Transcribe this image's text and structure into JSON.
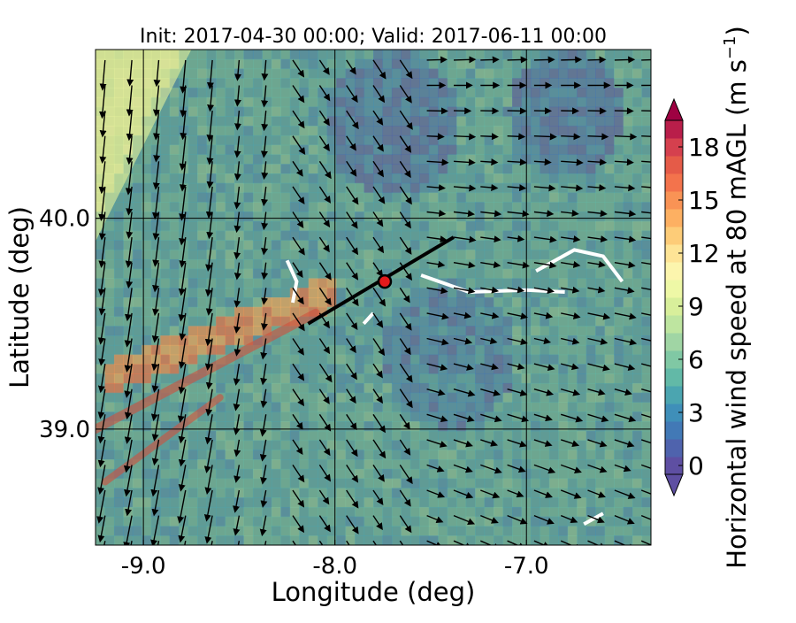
{
  "chart_data": {
    "type": "heatmap",
    "title": "Init: 2017-04-30 00:00; Valid: 2017-06-11 00:00",
    "xlabel": "Longitude (deg)",
    "ylabel": "Latitude (deg)",
    "xlim": [
      -9.25,
      -6.35
    ],
    "ylim": [
      38.45,
      40.8
    ],
    "x_ticks": [
      {
        "value": -9.0,
        "label": "-9.0"
      },
      {
        "value": -8.0,
        "label": "-8.0"
      },
      {
        "value": -7.0,
        "label": "-7.0"
      }
    ],
    "y_ticks": [
      {
        "value": 40.0,
        "label": "40.0"
      },
      {
        "value": 39.0,
        "label": "39.0"
      }
    ],
    "grid": true,
    "colorbar": {
      "label_main": "Horizontal wind speed at 80 mAGL (m s",
      "label_sup": "−1",
      "label_close": ")",
      "min": 0,
      "max": 20,
      "step": 1,
      "extend": "both",
      "ticks": [
        {
          "value": 0,
          "label": "0"
        },
        {
          "value": 3,
          "label": "3"
        },
        {
          "value": 6,
          "label": "6"
        },
        {
          "value": 9,
          "label": "9"
        },
        {
          "value": 12,
          "label": "12"
        },
        {
          "value": 15,
          "label": "15"
        },
        {
          "value": 18,
          "label": "18"
        }
      ],
      "colors": [
        "#5e4fa2",
        "#4f63ad",
        "#4279b6",
        "#3f8fb9",
        "#4ba5b0",
        "#62b9a7",
        "#80c8a4",
        "#a0d5a4",
        "#bee5a0",
        "#d8ef9b",
        "#eef8a6",
        "#fcf5ad",
        "#fee496",
        "#fdcc78",
        "#fdb062",
        "#f99355",
        "#f3734c",
        "#e55b48",
        "#d5404e",
        "#b91e4a",
        "#9e0142"
      ],
      "under_color": "#5e4fa2",
      "over_color": "#9e0142"
    },
    "transect": {
      "start": {
        "lon": -8.14,
        "lat": 39.5
      },
      "end": {
        "lon": -7.38,
        "lat": 39.91
      },
      "marker": {
        "lon": -7.74,
        "lat": 39.7,
        "color": "#e31a1c"
      }
    },
    "wind_field_description": "Mostly southward/south-westward flow in west, eastward flow in east",
    "wind_speed_regions": [
      {
        "name": "coastal_strip",
        "speed_range": [
          8,
          11
        ]
      },
      {
        "name": "ridge_band",
        "speed_range": [
          13,
          17
        ]
      },
      {
        "name": "interior",
        "speed_range": [
          1,
          6
        ]
      }
    ]
  }
}
